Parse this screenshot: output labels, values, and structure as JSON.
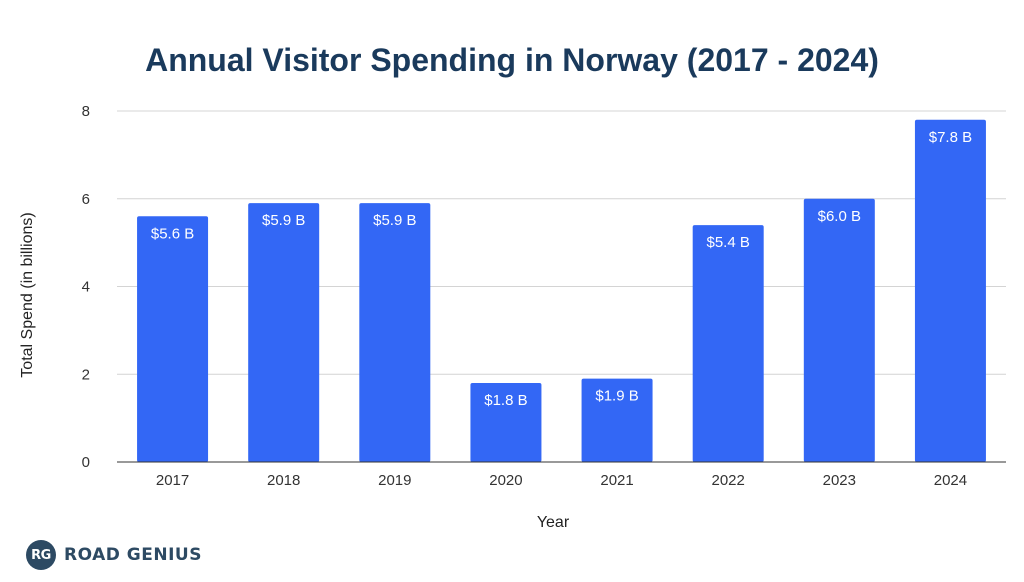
{
  "chart_data": {
    "type": "bar",
    "title": "Annual Visitor Spending in Norway (2017 - 2024)",
    "xlabel": "Year",
    "ylabel": "Total Spend (in billions)",
    "categories": [
      "2017",
      "2018",
      "2019",
      "2020",
      "2021",
      "2022",
      "2023",
      "2024"
    ],
    "values": [
      5.6,
      5.9,
      5.9,
      1.8,
      1.9,
      5.4,
      6.0,
      7.8
    ],
    "data_labels": [
      "$5.6 B",
      "$5.9 B",
      "$5.9 B",
      "$1.8 B",
      "$1.9 B",
      "$5.4 B",
      "$6.0 B",
      "$7.8 B"
    ],
    "ylim": [
      0,
      8
    ],
    "yticks": [
      "0",
      "2",
      "4",
      "6",
      "8"
    ],
    "grid": true,
    "bar_color": "#3367f5",
    "legend": "none"
  },
  "branding": {
    "logo_text": "RG",
    "name": "ROAD GENIUS"
  }
}
